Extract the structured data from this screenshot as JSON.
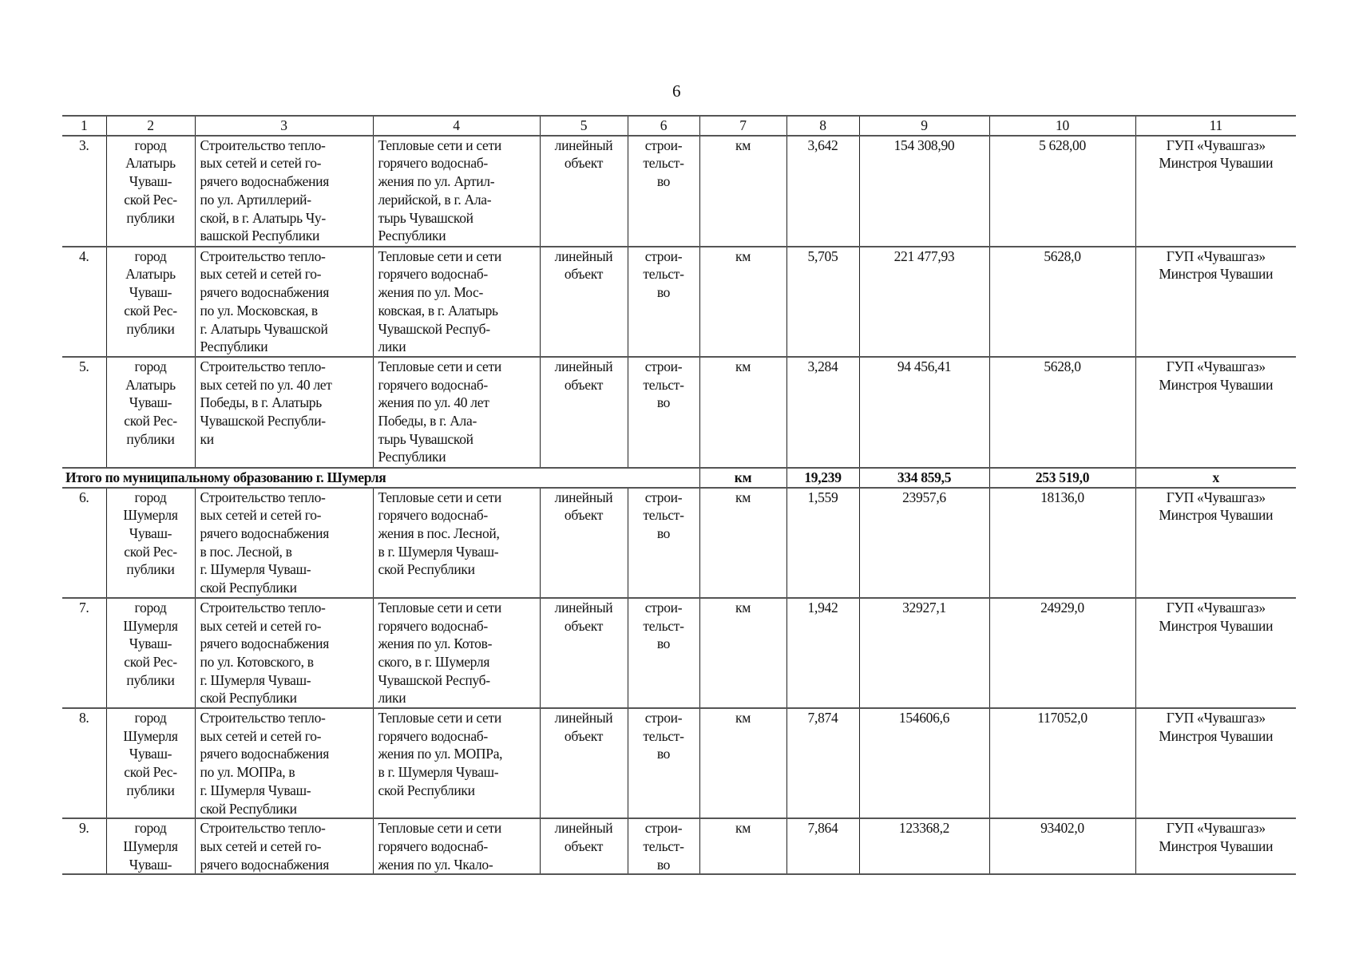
{
  "page_number": "6",
  "table": {
    "header": [
      "1",
      "2",
      "3",
      "4",
      "5",
      "6",
      "7",
      "8",
      "9",
      "10",
      "11"
    ],
    "rows_before_total": [
      {
        "num": "3.",
        "municipality": "город\nАлатырь\nЧуваш-\nской Рес-\nпублики",
        "name": "Строительство   тепло-\nвых  сетей  и  сетей  го-\nрячего  водоснабжения\nпо    ул.    Артиллерий-\nской, в г. Алатырь Чу-\nвашской Республики",
        "object": "Тепловые сети и сети\nгорячего    водоснаб-\nжения по ул. Артил-\nлерийской, в г. Ала-\nтырь          Чувашской\nРеспублики",
        "type": "линейный\nобъект",
        "work": "строи-\nтельст-\nво",
        "unit": "км",
        "length": "3,642",
        "cost": "154 308,90",
        "col10": "5 628,00",
        "owner": "ГУП «Чувашгаз»\nМинстроя Чувашии"
      },
      {
        "num": "4.",
        "municipality": "город\nАлатырь\nЧуваш-\nской Рес-\nпублики",
        "name": "Строительство   тепло-\nвых  сетей  и  сетей  го-\nрячего  водоснабжения\nпо  ул.  Московская,  в\nг. Алатырь Чувашской\nРеспублики",
        "object": "Тепловые сети и сети\nгорячего    водоснаб-\nжения  по  ул.  Мос-\nковская, в г. Алатырь\nЧувашской    Респуб-\nлики",
        "type": "линейный\nобъект",
        "work": "строи-\nтельст-\nво",
        "unit": "км",
        "length": "5,705",
        "cost": "221 477,93",
        "col10": "5628,0",
        "owner": "ГУП «Чувашгаз»\nМинстроя Чувашии"
      },
      {
        "num": "5.",
        "municipality": "город\nАлатырь\nЧуваш-\nской Рес-\nпублики",
        "name": "Строительство   тепло-\nвых сетей по ул. 40 лет\nПобеды, в г. Алатырь\nЧувашской  Республи-\nки",
        "object": "Тепловые сети и сети\nгорячего    водоснаб-\nжения по ул. 40 лет\nПобеды,   в   г.   Ала-\nтырь          Чувашской\nРеспублики",
        "type": "линейный\nобъект",
        "work": "строи-\nтельст-\nво",
        "unit": "км",
        "length": "3,284",
        "cost": "94 456,41",
        "col10": "5628,0",
        "owner": "ГУП «Чувашгаз»\nМинстроя Чувашии"
      }
    ],
    "total": {
      "label": "Итого по муниципальному образованию г. Шумерля",
      "unit": "км",
      "length": "19,239",
      "cost": "334 859,5",
      "col10": "253 519,0",
      "owner": "х"
    },
    "rows_after_total": [
      {
        "num": "6.",
        "municipality": "город\nШумерля\nЧуваш-\nской Рес-\nпублики",
        "name": "Строительство   тепло-\nвых  сетей  и  сетей  го-\nрячего  водоснабжения\nв    пос.     Лесной,     в\nг.   Шумерля   Чуваш-\nской Республики",
        "object": "Тепловые сети и сети\nгорячего    водоснаб-\nжения в пос. Лесной,\nв г. Шумерля Чуваш-\nской Республики",
        "type": "линейный\nобъект",
        "work": "строи-\nтельст-\nво",
        "unit": "км",
        "length": "1,559",
        "cost": "23957,6",
        "col10": "18136,0",
        "owner": "ГУП «Чувашгаз»\nМинстроя Чувашии"
      },
      {
        "num": "7.",
        "municipality": "город\nШумерля\nЧуваш-\nской Рес-\nпублики",
        "name": "Строительство   тепло-\nвых  сетей  и  сетей  го-\nрячего  водоснабжения\nпо  ул.  Котовского,  в\nг.   Шумерля   Чуваш-\nской Республики",
        "object": "Тепловые сети и сети\nгорячего    водоснаб-\nжения  по  ул.  Котов-\nского, в г. Шумерля\nЧувашской    Респуб-\nлики",
        "type": "линейный\nобъект",
        "work": "строи-\nтельст-\nво",
        "unit": "км",
        "length": "1,942",
        "cost": "32927,1",
        "col10": "24929,0",
        "owner": "ГУП «Чувашгаз»\nМинстроя Чувашии"
      },
      {
        "num": "8.",
        "municipality": "город\nШумерля\nЧуваш-\nской Рес-\nпублики",
        "name": "Строительство   тепло-\nвых  сетей  и  сетей  го-\nрячего  водоснабжения\nпо    ул.    МОПРа,    в\nг.   Шумерля   Чуваш-\nской Республики",
        "object": "Тепловые сети и сети\nгорячего     водоснаб-\nжения по ул. МОПРа,\nв г. Шумерля Чуваш-\nской Республики",
        "type": "линейный\nобъект",
        "work": "строи-\nтельст-\nво",
        "unit": "км",
        "length": "7,874",
        "cost": "154606,6",
        "col10": "117052,0",
        "owner": "ГУП «Чувашгаз»\nМинстроя Чувашии"
      },
      {
        "num": "9.",
        "municipality": "город\nШумерля\nЧуваш-",
        "name": "Строительство   тепло-\nвых  сетей  и  сетей  го-\nрячего  водоснабжения",
        "object": "Тепловые сети и сети\nгорячего    водоснаб-\nжения  по  ул.  Чкало-",
        "type": "линейный\nобъект",
        "work": "строи-\nтельст-\nво",
        "unit": "км",
        "length": "7,864",
        "cost": "123368,2",
        "col10": "93402,0",
        "owner": "ГУП «Чувашгаз»\nМинстроя Чувашии"
      }
    ]
  }
}
